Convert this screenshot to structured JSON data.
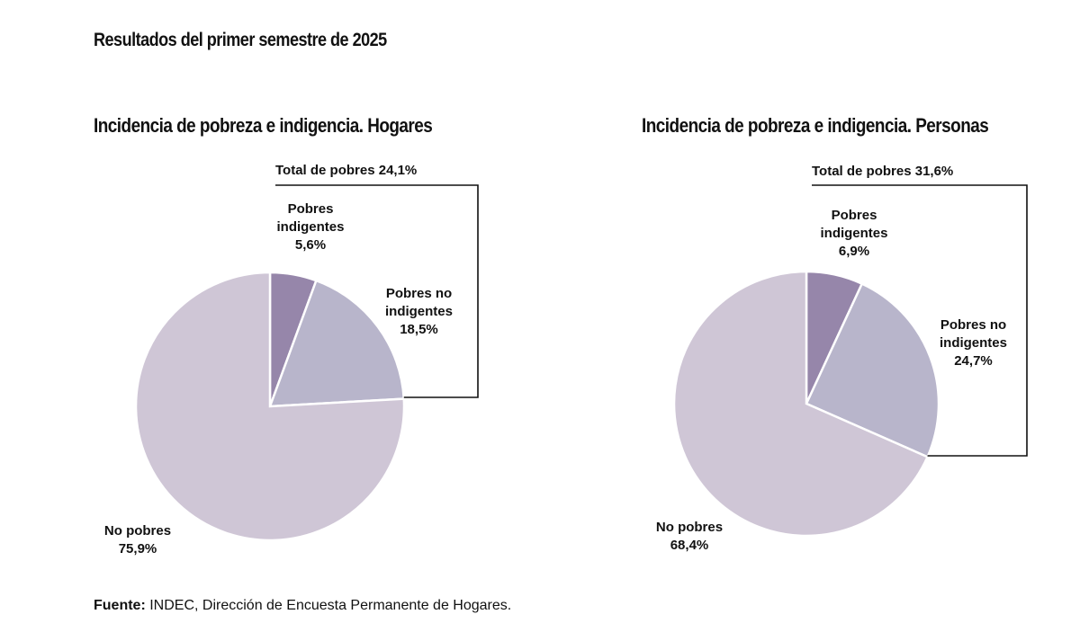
{
  "page_title": "Resultados del primer semestre de 2025",
  "colors": {
    "no_pobres": "#cfc6d6",
    "pobres_no_indigentes": "#b8b5cb",
    "pobres_indigentes": "#9686aa"
  },
  "chart_data": [
    {
      "type": "pie",
      "title": "Incidencia de pobreza e indigencia. Hogares",
      "total_label": "Total de pobres 24,1%",
      "slices": [
        {
          "name": "Pobres indigentes",
          "value": 5.6,
          "label": "Pobres\nindigentes\n5,6%"
        },
        {
          "name": "Pobres no indigentes",
          "value": 18.5,
          "label": "Pobres no\nindigentes\n18,5%"
        },
        {
          "name": "No pobres",
          "value": 75.9,
          "label": "No pobres\n75,9%"
        }
      ]
    },
    {
      "type": "pie",
      "title": "Incidencia de pobreza e indigencia. Personas",
      "total_label": "Total de pobres 31,6%",
      "slices": [
        {
          "name": "Pobres indigentes",
          "value": 6.9,
          "label": "Pobres\nindigentes\n6,9%"
        },
        {
          "name": "Pobres no indigentes",
          "value": 24.7,
          "label": "Pobres no\nindigentes\n24,7%"
        },
        {
          "name": "No pobres",
          "value": 68.4,
          "label": "No pobres\n68,4%"
        }
      ]
    }
  ],
  "source": {
    "label": "Fuente:",
    "text": " INDEC, Dirección de Encuesta Permanente de Hogares."
  }
}
